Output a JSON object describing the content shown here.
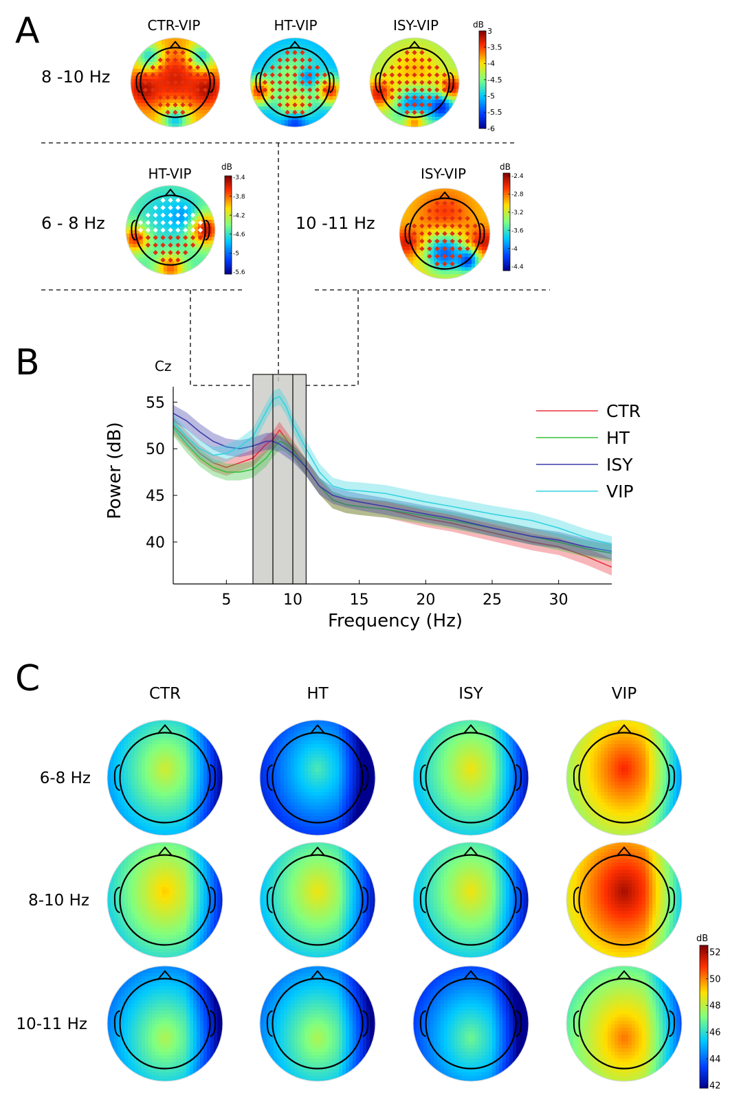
{
  "panels": {
    "a": "A",
    "b": "B",
    "c": "C"
  },
  "panel_a": {
    "top_row": {
      "band": "8 -10 Hz",
      "maps": [
        {
          "title": "CTR-VIP",
          "palette": "contrast_ctr"
        },
        {
          "title": "HT-VIP",
          "palette": "contrast_ht"
        },
        {
          "title": "ISY-VIP",
          "palette": "contrast_isy"
        }
      ],
      "colorbar": {
        "unit": "dB",
        "ticks": [
          "3",
          "-3.5",
          "-4",
          "-4.5",
          "-5",
          "-5.5",
          "-6"
        ]
      }
    },
    "left_map": {
      "band": "6 - 8 Hz",
      "title": "HT-VIP",
      "colorbar": {
        "unit": "dB",
        "ticks": [
          "-3.4",
          "-3.8",
          "-4.2",
          "-4.6",
          "-5",
          "-5.6"
        ]
      }
    },
    "right_map": {
      "band": "10 -11 Hz",
      "title": "ISY-VIP",
      "colorbar": {
        "unit": "dB",
        "ticks": [
          "-2.4",
          "-2.8",
          "-3.2",
          "-3.6",
          "-4",
          "-4.4"
        ]
      }
    }
  },
  "chart_data": {
    "type": "line",
    "channel_label": "Cz",
    "xlabel": "Frequency (Hz)",
    "ylabel": "Power (dB)",
    "xlim": [
      1,
      34
    ],
    "ylim": [
      35.5,
      56.5
    ],
    "xticks": [
      5,
      10,
      15,
      20,
      25,
      30
    ],
    "yticks": [
      40,
      45,
      50,
      55
    ],
    "highlight_bands": [
      [
        7,
        8.5
      ],
      [
        8.5,
        10
      ],
      [
        10,
        11
      ]
    ],
    "legend_position": "right",
    "x": [
      1,
      2,
      3,
      4,
      5,
      6,
      7,
      8,
      8.5,
      9,
      9.5,
      10,
      11,
      12,
      13,
      14,
      15,
      17,
      20,
      22,
      25,
      28,
      30,
      32,
      34
    ],
    "series": [
      {
        "name": "CTR",
        "color": "#e8303a",
        "values": [
          52.5,
          51,
          49.5,
          48.5,
          48,
          48.5,
          49,
          50.5,
          51,
          52,
          51,
          50,
          48,
          46,
          44.5,
          44,
          43.8,
          43.5,
          42.5,
          42,
          41,
          40,
          39.5,
          38.5,
          37.3
        ]
      },
      {
        "name": "HT",
        "color": "#36c23c",
        "values": [
          52.3,
          50.5,
          49,
          48,
          47.5,
          47.5,
          47.8,
          49,
          50,
          50.8,
          50.5,
          49.8,
          48,
          46,
          44.5,
          44,
          43.8,
          43.5,
          42.8,
          42.3,
          41.5,
          40.6,
          40,
          39.3,
          38.8
        ]
      },
      {
        "name": "ISY",
        "color": "#3a3aa8",
        "values": [
          53.8,
          53,
          51.8,
          50.8,
          50.2,
          50,
          50.3,
          50.8,
          50.8,
          50.5,
          50,
          49.5,
          48,
          46,
          45,
          44.6,
          44.3,
          43.8,
          43,
          42.5,
          41.5,
          40.6,
          40.2,
          39.5,
          39
        ]
      },
      {
        "name": "VIP",
        "color": "#33d3e0",
        "values": [
          52.8,
          51.3,
          50,
          49.3,
          49.5,
          50.2,
          51.3,
          54,
          55.3,
          55.6,
          54.5,
          52.7,
          50,
          47.5,
          46,
          45.6,
          45.5,
          45.2,
          44.3,
          43.8,
          43,
          42.3,
          41.5,
          40.5,
          39.7
        ]
      }
    ]
  },
  "panel_c": {
    "columns": [
      "CTR",
      "HT",
      "ISY",
      "VIP"
    ],
    "rows": [
      "6-8 Hz",
      "8-10 Hz",
      "10-11 Hz"
    ],
    "level_db": [
      [
        48.5,
        46.5,
        49,
        51.5
      ],
      [
        49.5,
        49,
        49,
        52.5
      ],
      [
        48,
        48,
        47,
        50.5
      ]
    ],
    "colorbar": {
      "unit": "dB",
      "ticks": [
        "52",
        "50",
        "48",
        "46",
        "44",
        "42"
      ]
    }
  }
}
